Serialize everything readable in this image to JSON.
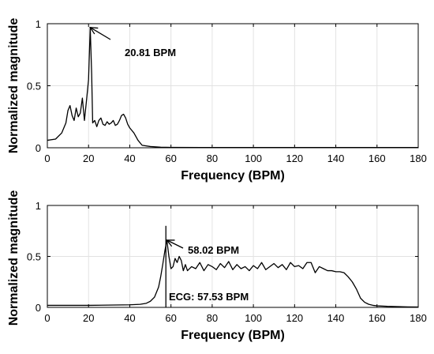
{
  "chart_data": [
    {
      "type": "line",
      "xlabel": "Frequency (BPM)",
      "ylabel": "Normalized magnitude",
      "xlim": [
        0,
        180
      ],
      "ylim": [
        0,
        1
      ],
      "xticks": [
        0,
        20,
        40,
        60,
        80,
        100,
        120,
        140,
        160,
        180
      ],
      "yticks": [
        0,
        0.5,
        1
      ],
      "grid": true,
      "series": [
        {
          "color": "#000000",
          "x": [
            0,
            4,
            7,
            9,
            10,
            11,
            12,
            13,
            14,
            15,
            16,
            17,
            18,
            19,
            20,
            20.81,
            21.5,
            22,
            23,
            24,
            25,
            26,
            27,
            28,
            29,
            30,
            31,
            32,
            33,
            34,
            35,
            36,
            37,
            38,
            39,
            40,
            42,
            44,
            46,
            50,
            55,
            60,
            80,
            100,
            120,
            140,
            160,
            180
          ],
          "y": [
            0.06,
            0.07,
            0.12,
            0.2,
            0.3,
            0.34,
            0.26,
            0.22,
            0.32,
            0.25,
            0.28,
            0.4,
            0.22,
            0.38,
            0.55,
            0.97,
            0.6,
            0.2,
            0.22,
            0.17,
            0.22,
            0.24,
            0.19,
            0.18,
            0.21,
            0.19,
            0.2,
            0.22,
            0.18,
            0.19,
            0.22,
            0.26,
            0.27,
            0.24,
            0.19,
            0.16,
            0.12,
            0.06,
            0.02,
            0.01,
            0.005,
            0.003,
            0.002,
            0.002,
            0.002,
            0.002,
            0.002,
            0.002
          ]
        }
      ],
      "annotations": [
        {
          "text": "20.81 BPM",
          "x": 20.81,
          "y": 0.97
        }
      ]
    },
    {
      "type": "line",
      "xlabel": "Frequency (BPM)",
      "ylabel": "Normalized magnitude",
      "xlim": [
        0,
        180
      ],
      "ylim": [
        0,
        1
      ],
      "xticks": [
        0,
        20,
        40,
        60,
        80,
        100,
        120,
        140,
        160,
        180
      ],
      "yticks": [
        0,
        0.5,
        1
      ],
      "grid": true,
      "series": [
        {
          "color": "#000000",
          "x": [
            0,
            20,
            40,
            45,
            48,
            50,
            52,
            54,
            55,
            56,
            57,
            58,
            59,
            60,
            61,
            62,
            63,
            64,
            65,
            66,
            67,
            68,
            70,
            72,
            74,
            76,
            78,
            80,
            82,
            84,
            86,
            88,
            90,
            92,
            94,
            96,
            98,
            100,
            102,
            104,
            106,
            108,
            110,
            112,
            114,
            116,
            118,
            120,
            122,
            124,
            126,
            128,
            130,
            132,
            134,
            136,
            138,
            140,
            142,
            144,
            146,
            148,
            150,
            152,
            154,
            156,
            158,
            160,
            165,
            170,
            175,
            180
          ],
          "y": [
            0.02,
            0.02,
            0.025,
            0.03,
            0.04,
            0.06,
            0.1,
            0.2,
            0.3,
            0.42,
            0.55,
            0.66,
            0.5,
            0.38,
            0.4,
            0.48,
            0.44,
            0.5,
            0.46,
            0.36,
            0.42,
            0.36,
            0.4,
            0.38,
            0.44,
            0.36,
            0.42,
            0.4,
            0.37,
            0.43,
            0.39,
            0.45,
            0.37,
            0.42,
            0.38,
            0.4,
            0.36,
            0.41,
            0.38,
            0.44,
            0.37,
            0.4,
            0.43,
            0.39,
            0.42,
            0.37,
            0.44,
            0.4,
            0.41,
            0.38,
            0.44,
            0.44,
            0.34,
            0.4,
            0.38,
            0.36,
            0.36,
            0.35,
            0.35,
            0.34,
            0.3,
            0.25,
            0.18,
            0.09,
            0.05,
            0.03,
            0.02,
            0.015,
            0.01,
            0.008,
            0.005,
            0.004
          ]
        }
      ],
      "reference_line": {
        "x": 57.53,
        "label": "ECG: 57.53 BPM"
      },
      "annotations": [
        {
          "text": "58.02 BPM",
          "x": 58.02,
          "y": 0.66
        },
        {
          "text": "ECG: 57.53 BPM",
          "x": 57.53,
          "y": 0.09
        }
      ]
    }
  ]
}
